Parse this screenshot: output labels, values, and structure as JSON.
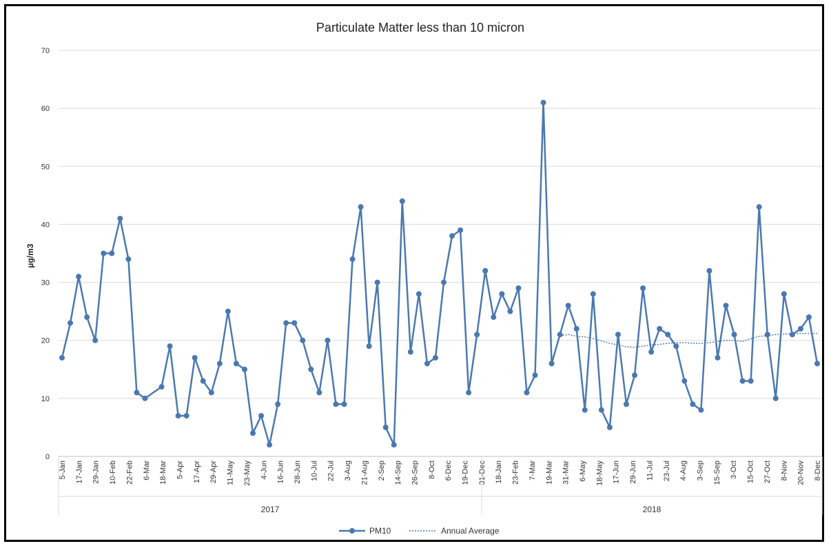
{
  "chart_data": {
    "type": "line",
    "title": "Particulate Matter less than 10 micron",
    "ylabel": "µg/m3",
    "xlabel": "",
    "ylim": [
      0,
      70
    ],
    "yticks": [
      0,
      10,
      20,
      30,
      40,
      50,
      60,
      70
    ],
    "grid": true,
    "legend_position": "bottom",
    "year_groups": [
      {
        "label": "2017",
        "start_index": 0,
        "end_index": 50
      },
      {
        "label": "2018",
        "start_index": 51,
        "end_index": 91
      }
    ],
    "x_tick_labels": [
      "5-Jan",
      "17-Jan",
      "29-Jan",
      "10-Feb",
      "22-Feb",
      "6-Mar",
      "18-Mar",
      "5-Apr",
      "17-Apr",
      "29-Apr",
      "11-May",
      "23-May",
      "4-Jun",
      "16-Jun",
      "28-Jun",
      "10-Jul",
      "22-Jul",
      "3-Aug",
      "21-Aug",
      "2-Sep",
      "14-Sep",
      "26-Sep",
      "8-Oct",
      "6-Dec",
      "19-Dec",
      "31-Dec",
      "18-Jan",
      "23-Feb",
      "7-Mar",
      "19-Mar",
      "31-Mar",
      "6-May",
      "18-May",
      "17-Jun",
      "29-Jun",
      "11-Jul",
      "23-Jul",
      "4-Aug",
      "3-Sep",
      "15-Sep",
      "3-Oct",
      "15-Oct",
      "27-Oct",
      "8-Nov",
      "20-Nov",
      "8-Dec"
    ],
    "series": [
      {
        "name": "PM10",
        "color": "#4a78b0",
        "style": "solid-markers",
        "values": [
          17,
          23,
          31,
          24,
          20,
          35,
          35,
          41,
          34,
          11,
          10,
          null,
          12,
          19,
          7,
          7,
          17,
          13,
          11,
          16,
          25,
          16,
          15,
          4,
          7,
          2,
          9,
          23,
          23,
          20,
          15,
          11,
          20,
          9,
          9,
          34,
          43,
          19,
          30,
          5,
          2,
          44,
          18,
          28,
          16,
          17,
          30,
          38,
          39,
          11,
          21,
          32,
          24,
          28,
          25,
          29,
          11,
          14,
          61,
          16,
          21,
          26,
          22,
          8,
          28,
          8,
          5,
          21,
          9,
          14,
          29,
          18,
          22,
          21,
          19,
          13,
          9,
          8,
          32,
          17,
          26,
          21,
          13,
          13,
          43,
          21,
          10,
          28,
          21,
          22,
          24,
          16
        ]
      },
      {
        "name": "Annual Average",
        "color": "#4a78b0",
        "style": "dotted",
        "start_index": 60,
        "values": [
          20.8,
          21.0,
          20.7,
          20.6,
          20.3,
          19.9,
          19.5,
          19.2,
          18.9,
          18.8,
          19.0,
          19.2,
          19.3,
          19.5,
          19.6,
          19.6,
          19.5,
          19.5,
          19.6,
          19.8,
          20.0,
          20.0,
          19.8,
          20.3,
          20.7,
          20.8,
          21.0,
          21.1,
          21.1,
          21.2,
          21.2,
          21.2
        ]
      }
    ]
  }
}
